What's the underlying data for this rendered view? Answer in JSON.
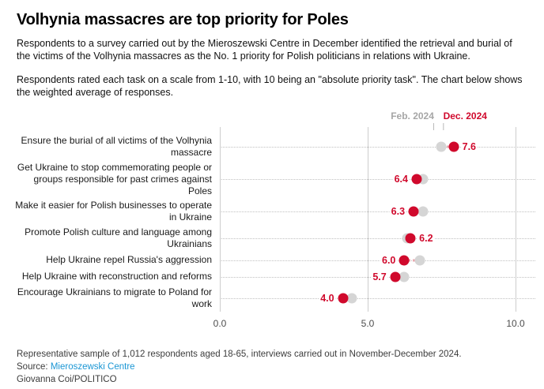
{
  "title": "Volhynia massacres are top priority for Poles",
  "intro": {
    "para1": "Respondents to a survey carried out by the Mieroszewski Centre in December identified the retrieval and burial of the victims of the Volhynia massacres as the No. 1 priority for Polish politicians in relations with Ukraine.",
    "para2": "Respondents rated each task on a scale from 1-10, with 10 being an \"absolute priority task\". The chart below shows the weighted average of responses."
  },
  "chart_data": {
    "type": "scatter",
    "subtype": "dumbbell-dot-plot",
    "categories": [
      "Ensure the burial of all victims of the Volhynia\nmassacre",
      "Get Ukraine to stop commemorating people or\ngroups responsible for past crimes against\nPoles",
      "Make it easier for Polish businesses to operate\nin Ukraine",
      "Promote Polish culture and language among\nUkrainians",
      "Help Ukraine repel Russia's aggression",
      "Help Ukraine with reconstruction and reforms",
      "Encourage Ukrainians to migrate to Poland for\nwork"
    ],
    "series": [
      {
        "name": "Feb. 2024",
        "values": [
          7.2,
          6.6,
          6.6,
          6.1,
          6.5,
          6.0,
          4.3
        ]
      },
      {
        "name": "Dec. 2024",
        "values": [
          7.6,
          6.4,
          6.3,
          6.2,
          6.0,
          5.7,
          4.0
        ]
      }
    ],
    "labeled_series": "Dec. 2024",
    "value_labels": [
      "7.6",
      "6.4",
      "6.3",
      "6.2",
      "6.0",
      "5.7",
      "4.0"
    ],
    "xlim": [
      0,
      10
    ],
    "x_ticks": [
      "0.0",
      "5.0",
      "10.0"
    ],
    "grid": "vertical-at-ticks",
    "legend_position": "top-over-first-row"
  },
  "colors": {
    "dec_red": "#d0092c",
    "feb_gray": "#d5d5d5",
    "legend_feb_text": "#a6a6a6",
    "gridline": "#cdcdcd",
    "link_blue": "#1a96d4"
  },
  "footer": {
    "note": "Representative sample of 1,012 respondents aged 18-65, interviews carried out in November-December 2024.",
    "source_prefix": "Source: ",
    "source_link": "Mieroszewski Centre",
    "credit": "Giovanna Coi/POLITICO"
  }
}
